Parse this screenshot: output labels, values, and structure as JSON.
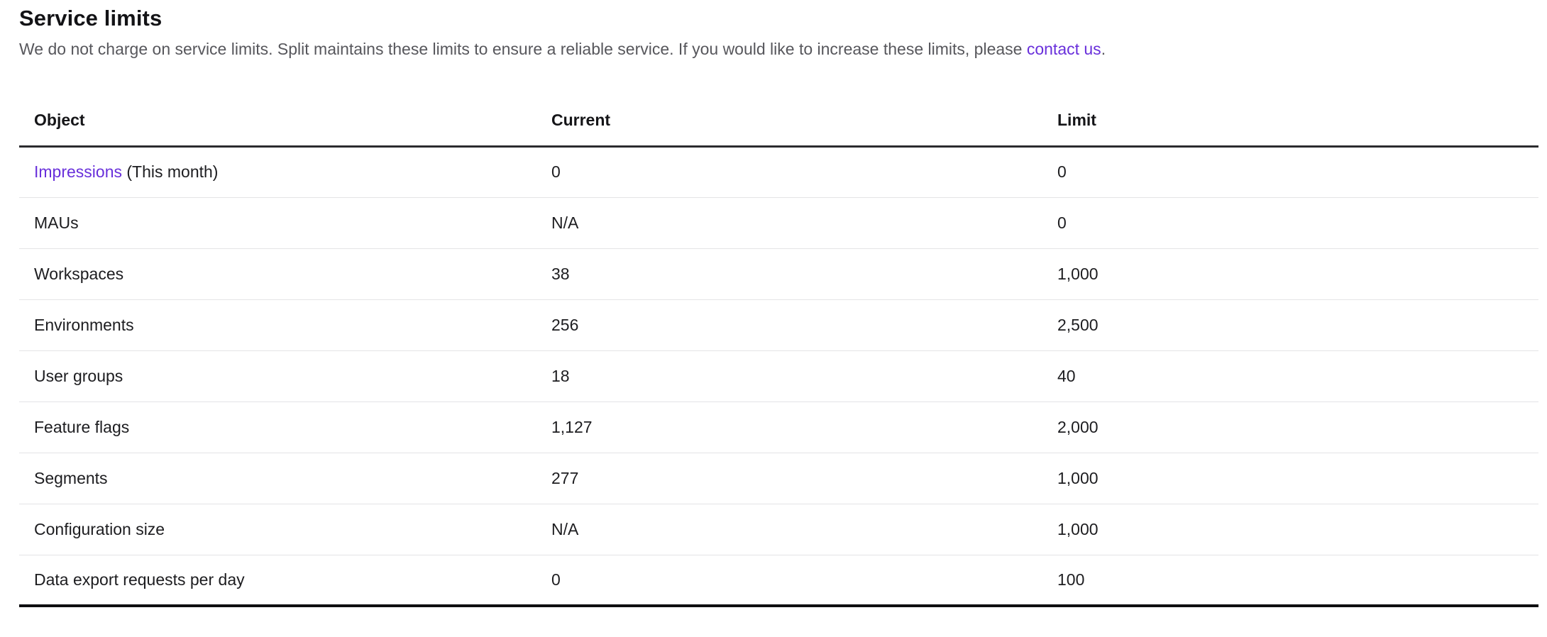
{
  "page": {
    "title": "Service limits",
    "description_before_link": "We do not charge on service limits. Split maintains these limits to ensure a reliable service. If you would like to increase these limits, please ",
    "link_text": "contact us",
    "description_after_link": "."
  },
  "table": {
    "columns": [
      "Object",
      "Current",
      "Limit"
    ],
    "rows": [
      {
        "object_link": "Impressions",
        "object_suffix": " (This month)",
        "current": "0",
        "limit": "0"
      },
      {
        "object": "MAUs",
        "current": "N/A",
        "limit": "0"
      },
      {
        "object": "Workspaces",
        "current": "38",
        "limit": "1,000"
      },
      {
        "object": "Environments",
        "current": "256",
        "limit": "2,500"
      },
      {
        "object": "User groups",
        "current": "18",
        "limit": "40"
      },
      {
        "object": "Feature flags",
        "current": "1,127",
        "limit": "2,000"
      },
      {
        "object": "Segments",
        "current": "277",
        "limit": "1,000"
      },
      {
        "object": "Configuration size",
        "current": "N/A",
        "limit": "1,000"
      },
      {
        "object": "Data export requests per day",
        "current": "0",
        "limit": "100"
      }
    ]
  },
  "colors": {
    "link": "#6930DB",
    "text_primary": "#1d1d20",
    "text_secondary": "#57575c",
    "divider": "#e4e4e6",
    "header_border": "#2b2b2e",
    "table_bottom_border": "#0e0e10",
    "background": "#ffffff"
  }
}
